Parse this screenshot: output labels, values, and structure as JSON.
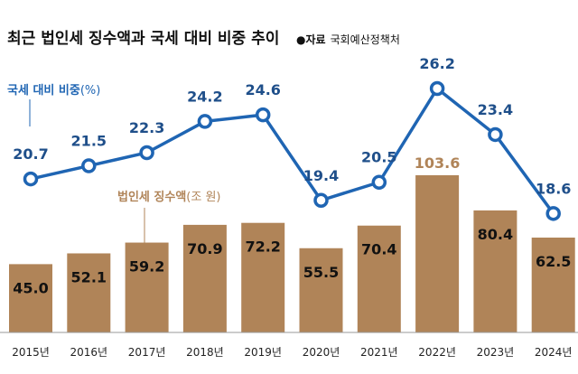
{
  "title": "최근 법인세 징수액과 국세 대비 비중 추이",
  "source_bullet": "●",
  "source_label": "자료",
  "source": "국회예산정책처",
  "chart_data": {
    "type": "bar+line",
    "categories": [
      "2015년",
      "2016년",
      "2017년",
      "2018년",
      "2019년",
      "2020년",
      "2021년",
      "2022년",
      "2023년",
      "2024년"
    ],
    "series": [
      {
        "name": "법인세 징수액",
        "unit": "(조 원)",
        "type": "bar",
        "color": "#b08458",
        "values": [
          45.0,
          52.1,
          59.2,
          70.9,
          72.2,
          55.5,
          70.4,
          103.6,
          80.4,
          62.5
        ],
        "labels": [
          "45.0",
          "52.1",
          "59.2",
          "70.9",
          "72.2",
          "55.5",
          "70.4",
          "103.6",
          "80.4",
          "62.5"
        ]
      },
      {
        "name": "국세 대비 비중",
        "unit": "(%)",
        "type": "line",
        "color": "#1f65b3",
        "values": [
          20.7,
          21.5,
          22.3,
          24.2,
          24.6,
          19.4,
          20.5,
          26.2,
          23.4,
          18.6
        ],
        "labels": [
          "20.7",
          "21.5",
          "22.3",
          "24.2",
          "24.6",
          "19.4",
          "20.5",
          "26.2",
          "23.4",
          "18.6"
        ]
      }
    ],
    "title": "최근 법인세 징수액과 국세 대비 비중 추이",
    "legend": "inline",
    "grid": false
  }
}
